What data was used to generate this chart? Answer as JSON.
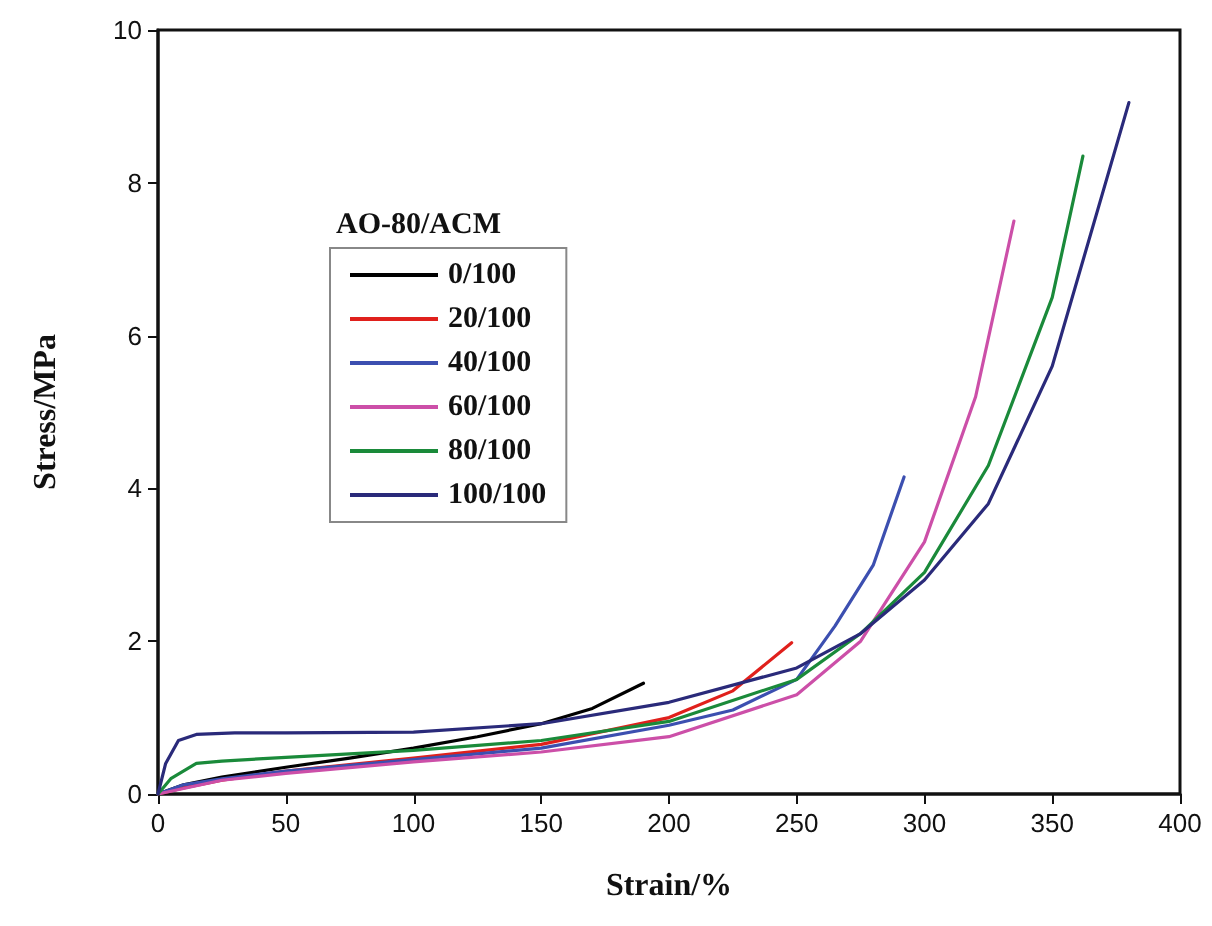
{
  "chart_data": {
    "type": "line",
    "xlabel": "Strain/%",
    "ylabel": "Stress/MPa",
    "legend_title": "AO-80/ACM",
    "legend": "top left",
    "grid": false,
    "marker": "none",
    "line_style": "solid",
    "xlim": [
      0,
      400
    ],
    "xticks": [
      0,
      50,
      100,
      150,
      200,
      250,
      300,
      350,
      400
    ],
    "ylim": [
      0,
      10
    ],
    "yticks": [
      0,
      2,
      4,
      6,
      8,
      10
    ],
    "series": [
      {
        "name": "0/100",
        "color": "#000000",
        "x": [
          0,
          10,
          25,
          50,
          75,
          100,
          125,
          150,
          170,
          190
        ],
        "values": [
          0,
          0.12,
          0.22,
          0.35,
          0.47,
          0.6,
          0.75,
          0.92,
          1.12,
          1.45
        ]
      },
      {
        "name": "20/100",
        "color": "#e0201c",
        "x": [
          0,
          10,
          25,
          50,
          100,
          150,
          200,
          225,
          248
        ],
        "values": [
          0,
          0.08,
          0.18,
          0.3,
          0.47,
          0.65,
          1.0,
          1.35,
          1.98
        ]
      },
      {
        "name": "40/100",
        "color": "#3c4fb0",
        "x": [
          0,
          10,
          25,
          50,
          100,
          150,
          200,
          225,
          250,
          265,
          280,
          292
        ],
        "values": [
          0,
          0.12,
          0.2,
          0.3,
          0.45,
          0.6,
          0.9,
          1.1,
          1.5,
          2.2,
          3.0,
          4.15
        ]
      },
      {
        "name": "60/100",
        "color": "#cc4fa8",
        "x": [
          0,
          25,
          50,
          100,
          150,
          200,
          250,
          275,
          300,
          320,
          335
        ],
        "values": [
          0,
          0.18,
          0.27,
          0.42,
          0.55,
          0.75,
          1.3,
          2.0,
          3.3,
          5.2,
          7.5
        ]
      },
      {
        "name": "80/100",
        "color": "#1a8a3a",
        "x": [
          0,
          5,
          15,
          25,
          50,
          100,
          150,
          200,
          250,
          275,
          300,
          325,
          350,
          362
        ],
        "values": [
          0,
          0.2,
          0.4,
          0.43,
          0.48,
          0.57,
          0.7,
          0.95,
          1.5,
          2.1,
          2.9,
          4.3,
          6.5,
          8.35
        ]
      },
      {
        "name": "100/100",
        "color": "#2a2a7a",
        "x": [
          0,
          3,
          8,
          15,
          30,
          50,
          100,
          150,
          200,
          250,
          275,
          300,
          325,
          350,
          380
        ],
        "values": [
          0,
          0.4,
          0.7,
          0.78,
          0.8,
          0.8,
          0.81,
          0.92,
          1.2,
          1.65,
          2.1,
          2.8,
          3.8,
          5.6,
          9.05
        ]
      }
    ]
  }
}
